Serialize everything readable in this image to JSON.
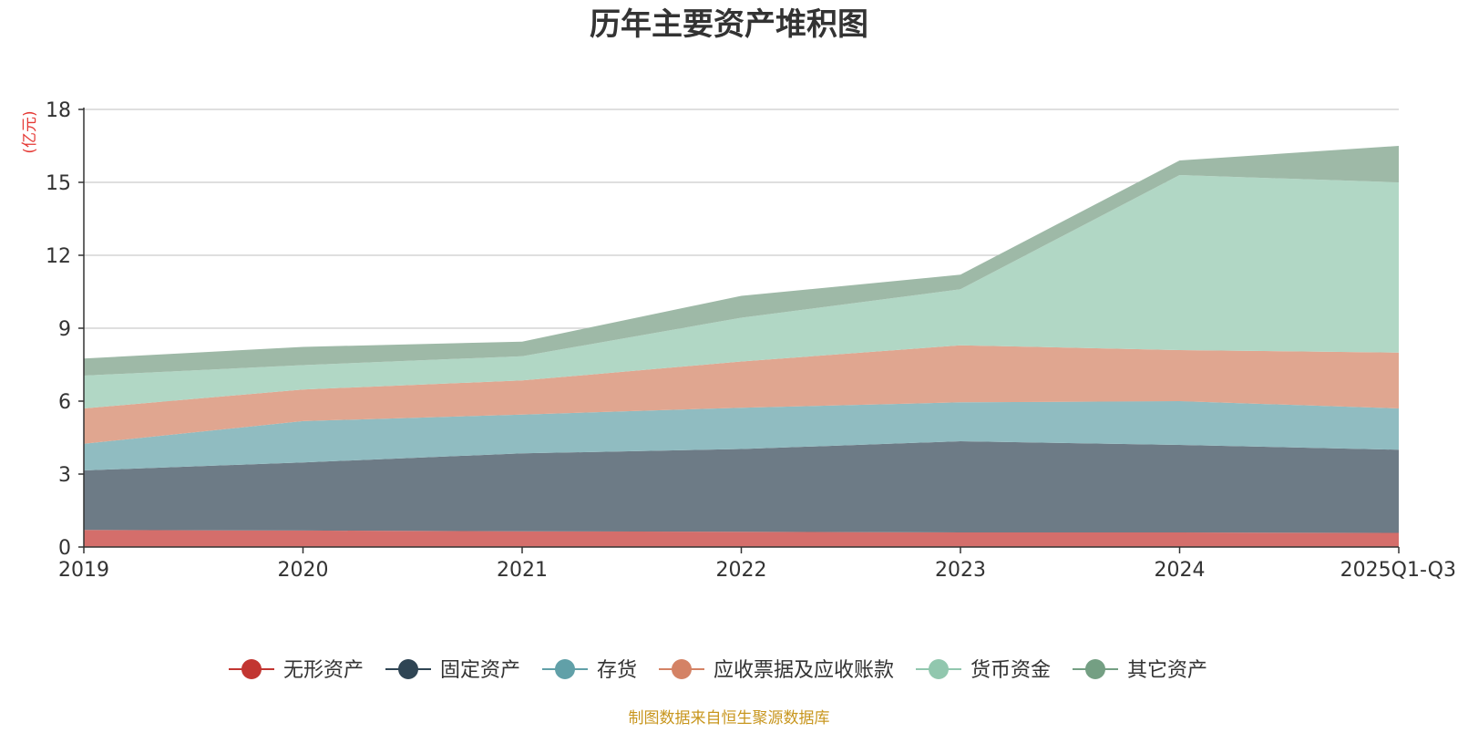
{
  "chart_data": {
    "type": "area",
    "stacked": true,
    "title": "历年主要资产堆积图",
    "ylabel": "(亿元)",
    "xlabel": "",
    "categories": [
      "2019",
      "2020",
      "2021",
      "2022",
      "2023",
      "2024",
      "2025Q1-Q3"
    ],
    "ylim": [
      0,
      18
    ],
    "yticks": [
      0,
      3,
      6,
      9,
      12,
      15,
      18
    ],
    "grid": true,
    "legend_position": "bottom",
    "series": [
      {
        "name": "无形资产",
        "color": "#c23531",
        "fill": "#d46e6b",
        "values": [
          0.7,
          0.68,
          0.65,
          0.63,
          0.6,
          0.6,
          0.58
        ]
      },
      {
        "name": "固定资产",
        "color": "#2f4554",
        "fill": "#6d7b86",
        "values": [
          2.45,
          2.8,
          3.2,
          3.4,
          3.75,
          3.6,
          3.42
        ]
      },
      {
        "name": "存货",
        "color": "#61a0a8",
        "fill": "#90bcc1",
        "values": [
          1.1,
          1.7,
          1.6,
          1.7,
          1.6,
          1.8,
          1.7
        ]
      },
      {
        "name": "应收票据及应收账款",
        "color": "#d48265",
        "fill": "#e0a690",
        "values": [
          1.45,
          1.3,
          1.4,
          1.9,
          2.35,
          2.1,
          2.3
        ]
      },
      {
        "name": "货币资金",
        "color": "#91c7ae",
        "fill": "#b1d7c5",
        "values": [
          1.35,
          1.0,
          1.0,
          1.8,
          2.3,
          7.2,
          7.0
        ]
      },
      {
        "name": "其它资产",
        "color": "#749f83",
        "fill": "#9eb9a7",
        "values": [
          0.7,
          0.75,
          0.6,
          0.9,
          0.6,
          0.6,
          1.5
        ]
      }
    ]
  },
  "footer": {
    "source_note": "制图数据来自恒生聚源数据库"
  }
}
